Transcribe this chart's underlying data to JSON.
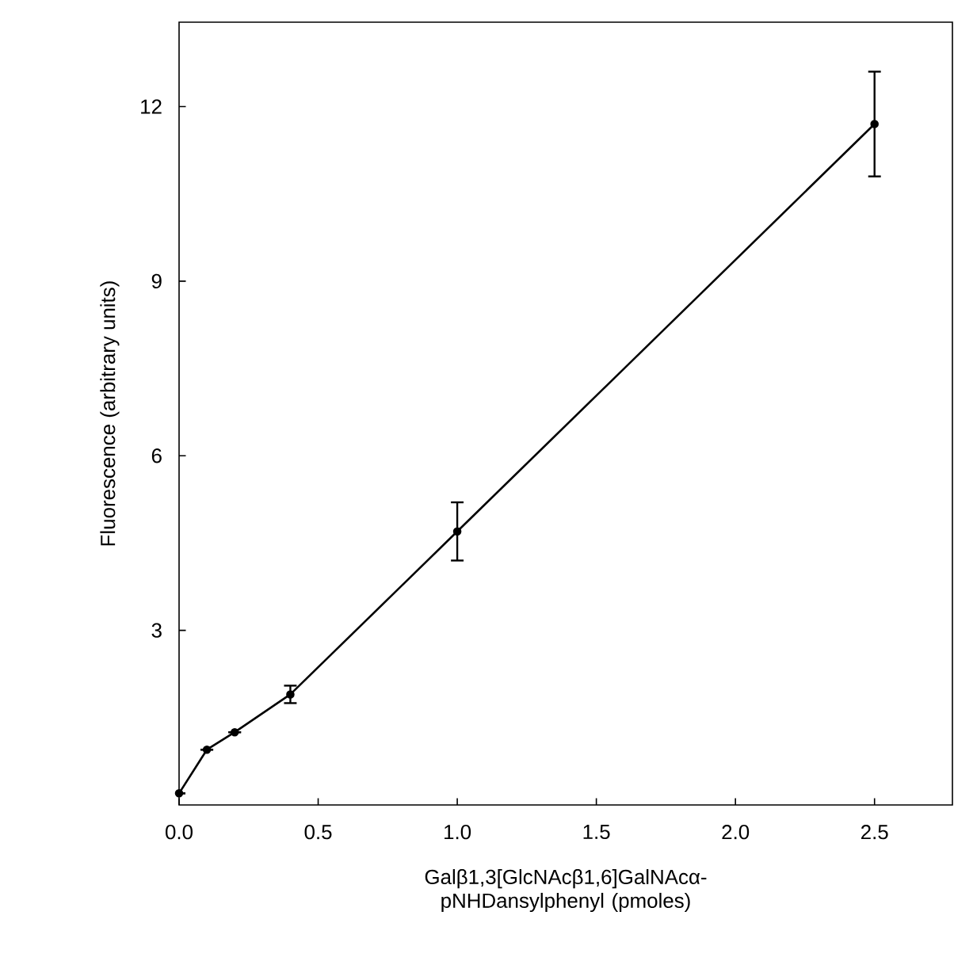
{
  "chart_data": {
    "type": "line",
    "xlabel": "Galβ1,3[GlcNAcβ1,6]GalNAcα-pNHDansylphenyl (pmoles)",
    "ylabel": "Fluorescence (arbitrary units)",
    "x": [
      0,
      0.1,
      0.2,
      0.4,
      1.0,
      2.5
    ],
    "values": [
      0.2,
      0.95,
      1.25,
      1.9,
      4.7,
      11.7
    ],
    "errors": [
      null,
      null,
      null,
      0.15,
      0.5,
      0.9
    ],
    "color": "#000000",
    "marker": "circle",
    "line_style": "solid",
    "xlim": [
      0,
      2.78
    ],
    "ylim": [
      0,
      13.45
    ],
    "xticks": [
      {
        "value": 0,
        "label": "0.0"
      },
      0.5,
      {
        "value": 1,
        "label": "1.0"
      },
      1.5,
      {
        "value": 2,
        "label": "2.0"
      },
      2.5
    ],
    "yticks": [
      3,
      6,
      9,
      12
    ]
  }
}
